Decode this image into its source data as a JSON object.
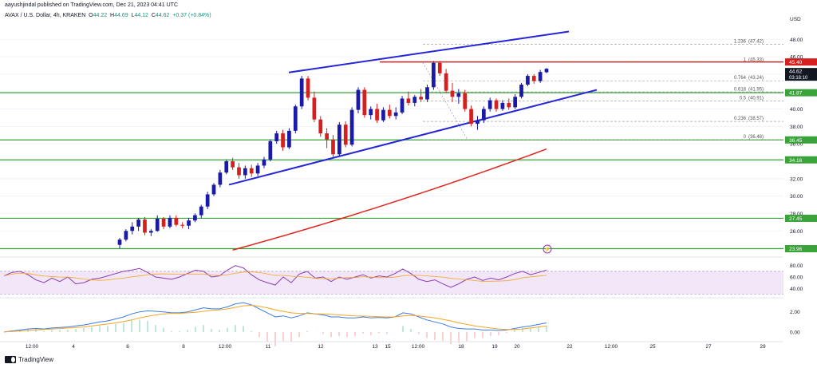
{
  "header": {
    "publisher": "aayushjindal published on TradingView.com, Dec 21, 2023 04:41 UTC",
    "symbol": "AVAX / U.S. Dollar, 4h, KRAKEN",
    "o_label": "O",
    "o_value": "44.22",
    "h_label": "H",
    "h_value": "44.69",
    "l_label": "L",
    "l_value": "44.12",
    "c_label": "C",
    "c_value": "44.62",
    "change": "+0.37 (+0.84%)"
  },
  "footer_logo": "TradingView",
  "colors": {
    "up": "#1a1aa8",
    "down": "#d61f1f",
    "hline": "#3aa33a",
    "trend": "#2626d9",
    "ma": "#e0251c",
    "fib_top": "#d61f1f",
    "rsi": "#8f3ab3",
    "macd": "#3d7de6",
    "signal": "#f5a623"
  },
  "chart_data": {
    "type": "candlestick",
    "currency": "USD",
    "price_axis": {
      "min": 23.0,
      "max": 50.5,
      "ticks": [
        "48.00",
        "46.00",
        "44.00",
        "42.00",
        "40.00",
        "38.00",
        "36.00",
        "34.00",
        "32.00",
        "30.00",
        "28.00",
        "26.00",
        "24.00"
      ]
    },
    "x_axis_labels": [
      "12:00",
      "4",
      "6",
      "8",
      "12:00",
      "11",
      "12",
      "13",
      "15",
      "12:00",
      "18",
      "19",
      "20",
      "22",
      "12:00",
      "25",
      "27",
      "29"
    ],
    "candles": [
      [
        24.4,
        25.2,
        24.0,
        25.0
      ],
      [
        25.0,
        26.2,
        24.8,
        26.0
      ],
      [
        26.0,
        27.0,
        25.6,
        26.5
      ],
      [
        26.5,
        27.5,
        26.0,
        27.3
      ],
      [
        27.3,
        27.6,
        25.5,
        25.8
      ],
      [
        25.8,
        26.2,
        25.4,
        26.0
      ],
      [
        26.0,
        27.8,
        25.9,
        27.4
      ],
      [
        27.4,
        27.6,
        26.2,
        26.5
      ],
      [
        26.5,
        27.8,
        26.3,
        27.5
      ],
      [
        27.5,
        27.8,
        26.5,
        26.7
      ],
      [
        26.7,
        27.0,
        26.3,
        26.6
      ],
      [
        26.6,
        27.5,
        26.2,
        27.2
      ],
      [
        27.2,
        28.0,
        27.0,
        27.8
      ],
      [
        27.8,
        29.0,
        27.5,
        28.8
      ],
      [
        28.8,
        30.5,
        28.5,
        30.2
      ],
      [
        30.2,
        31.5,
        30.0,
        31.3
      ],
      [
        31.3,
        33.0,
        31.0,
        32.7
      ],
      [
        32.7,
        34.2,
        32.5,
        34.0
      ],
      [
        34.0,
        34.4,
        33.0,
        33.3
      ],
      [
        33.3,
        33.8,
        32.0,
        32.4
      ],
      [
        32.4,
        33.5,
        32.0,
        33.2
      ],
      [
        33.2,
        33.6,
        32.2,
        32.6
      ],
      [
        32.6,
        33.8,
        32.3,
        33.5
      ],
      [
        33.5,
        34.5,
        33.2,
        34.2
      ],
      [
        34.2,
        36.5,
        34.0,
        36.3
      ],
      [
        36.3,
        37.5,
        36.0,
        37.2
      ],
      [
        37.2,
        37.6,
        35.2,
        35.6
      ],
      [
        35.6,
        37.8,
        35.4,
        37.5
      ],
      [
        37.5,
        40.5,
        37.2,
        40.3
      ],
      [
        40.3,
        43.8,
        40.0,
        43.5
      ],
      [
        43.5,
        43.8,
        41.0,
        41.3
      ],
      [
        41.3,
        42.0,
        38.5,
        38.8
      ],
      [
        38.8,
        39.2,
        36.8,
        37.2
      ],
      [
        37.2,
        37.8,
        35.5,
        36.5
      ],
      [
        36.5,
        37.0,
        34.5,
        34.8
      ],
      [
        34.8,
        38.5,
        34.6,
        38.2
      ],
      [
        38.2,
        38.6,
        35.6,
        35.9
      ],
      [
        35.9,
        40.2,
        35.7,
        39.9
      ],
      [
        39.9,
        42.5,
        39.5,
        42.2
      ],
      [
        42.2,
        42.5,
        39.0,
        39.3
      ],
      [
        39.3,
        40.3,
        38.8,
        40.0
      ],
      [
        40.0,
        40.6,
        38.4,
        38.7
      ],
      [
        38.7,
        40.2,
        38.5,
        39.9
      ],
      [
        39.9,
        40.5,
        38.9,
        39.2
      ],
      [
        39.2,
        40.2,
        38.8,
        39.6
      ],
      [
        39.6,
        41.5,
        39.4,
        41.2
      ],
      [
        41.2,
        42.0,
        40.4,
        40.7
      ],
      [
        40.7,
        41.6,
        40.3,
        41.4
      ],
      [
        41.4,
        42.3,
        40.8,
        41.1
      ],
      [
        41.1,
        42.8,
        40.8,
        42.5
      ],
      [
        42.5,
        45.5,
        42.2,
        45.3
      ],
      [
        45.3,
        45.5,
        43.8,
        44.1
      ],
      [
        44.1,
        44.6,
        41.8,
        42.1
      ],
      [
        42.1,
        43.0,
        40.8,
        41.4
      ],
      [
        41.4,
        42.3,
        40.6,
        41.8
      ],
      [
        41.8,
        42.2,
        39.7,
        40.0
      ],
      [
        40.0,
        40.4,
        38.0,
        38.3
      ],
      [
        38.3,
        39.2,
        37.6,
        38.7
      ],
      [
        38.7,
        40.3,
        38.4,
        40.0
      ],
      [
        40.0,
        41.3,
        39.7,
        41.0
      ],
      [
        41.0,
        41.2,
        39.7,
        40.0
      ],
      [
        40.0,
        41.0,
        39.8,
        40.7
      ],
      [
        40.7,
        41.2,
        39.9,
        40.2
      ],
      [
        40.2,
        41.7,
        40.0,
        41.4
      ],
      [
        41.4,
        43.0,
        41.2,
        42.8
      ],
      [
        42.8,
        44.0,
        42.6,
        43.8
      ],
      [
        43.8,
        44.0,
        42.9,
        43.2
      ],
      [
        43.2,
        44.5,
        43.0,
        44.25
      ],
      [
        44.22,
        44.69,
        44.12,
        44.62
      ]
    ],
    "horizontal_levels": [
      {
        "value": 45.4,
        "label": "45.40"
      },
      {
        "value": 41.87,
        "label": "41.87"
      },
      {
        "value": 36.45,
        "label": "36.45"
      },
      {
        "value": 34.16,
        "label": "34.16"
      },
      {
        "value": 27.45,
        "label": "27.45"
      },
      {
        "value": 23.96,
        "label": "23.96"
      }
    ],
    "current_price": {
      "value": 44.62,
      "label": "44.62",
      "countdown": "03:18:10"
    },
    "axis_currency": "USD",
    "fibonacci": [
      {
        "ratio": "1.236",
        "price": "(47.42)",
        "value": 47.42
      },
      {
        "ratio": "1",
        "price": "(45.33)",
        "value": 45.33
      },
      {
        "ratio": "0.764",
        "price": "(43.24)",
        "value": 43.24
      },
      {
        "ratio": "0.618",
        "price": "(41.95)",
        "value": 41.95
      },
      {
        "ratio": "0.5",
        "price": "(40.91)",
        "value": 40.91
      },
      {
        "ratio": "0.236",
        "price": "(38.57)",
        "value": 38.57
      },
      {
        "ratio": "0",
        "price": "(36.48)",
        "value": 36.48
      }
    ],
    "rsi": {
      "ticks": [
        "80.00",
        "60.00",
        "40.00"
      ],
      "values": [
        62,
        68,
        70,
        64,
        55,
        50,
        58,
        52,
        60,
        48,
        50,
        56,
        58,
        62,
        66,
        70,
        72,
        75,
        68,
        60,
        58,
        56,
        60,
        66,
        72,
        70,
        60,
        62,
        72,
        80,
        76,
        64,
        55,
        50,
        46,
        60,
        50,
        65,
        70,
        58,
        60,
        52,
        60,
        56,
        60,
        64,
        58,
        62,
        60,
        66,
        74,
        66,
        56,
        52,
        55,
        48,
        42,
        48,
        56,
        60,
        54,
        58,
        55,
        60,
        66,
        70,
        64,
        68,
        72
      ]
    },
    "macd": {
      "ticks": [
        "2.00",
        "0.00"
      ],
      "macd": [
        0.0,
        0.1,
        0.2,
        0.3,
        0.35,
        0.3,
        0.4,
        0.45,
        0.5,
        0.6,
        0.7,
        0.85,
        1.0,
        1.1,
        1.3,
        1.5,
        1.8,
        2.0,
        2.1,
        2.05,
        2.0,
        1.9,
        1.9,
        2.0,
        2.2,
        2.4,
        2.3,
        2.3,
        2.5,
        2.8,
        2.9,
        2.7,
        2.3,
        1.9,
        1.5,
        1.6,
        1.4,
        1.6,
        1.9,
        1.8,
        1.7,
        1.5,
        1.5,
        1.4,
        1.4,
        1.5,
        1.4,
        1.45,
        1.4,
        1.5,
        1.9,
        1.8,
        1.5,
        1.2,
        1.0,
        0.8,
        0.5,
        0.35,
        0.3,
        0.3,
        0.2,
        0.2,
        0.15,
        0.2,
        0.35,
        0.5,
        0.6,
        0.75,
        0.9
      ],
      "signal": [
        0.0,
        0.05,
        0.1,
        0.15,
        0.2,
        0.25,
        0.3,
        0.35,
        0.4,
        0.45,
        0.5,
        0.6,
        0.7,
        0.8,
        0.9,
        1.05,
        1.2,
        1.4,
        1.55,
        1.7,
        1.8,
        1.85,
        1.85,
        1.9,
        1.95,
        2.05,
        2.15,
        2.2,
        2.3,
        2.45,
        2.6,
        2.65,
        2.55,
        2.4,
        2.2,
        2.05,
        1.9,
        1.85,
        1.85,
        1.8,
        1.8,
        1.75,
        1.7,
        1.65,
        1.6,
        1.58,
        1.55,
        1.52,
        1.5,
        1.5,
        1.6,
        1.65,
        1.6,
        1.5,
        1.4,
        1.25,
        1.1,
        0.9,
        0.75,
        0.6,
        0.5,
        0.4,
        0.3,
        0.25,
        0.25,
        0.3,
        0.4,
        0.5,
        0.6
      ]
    }
  }
}
